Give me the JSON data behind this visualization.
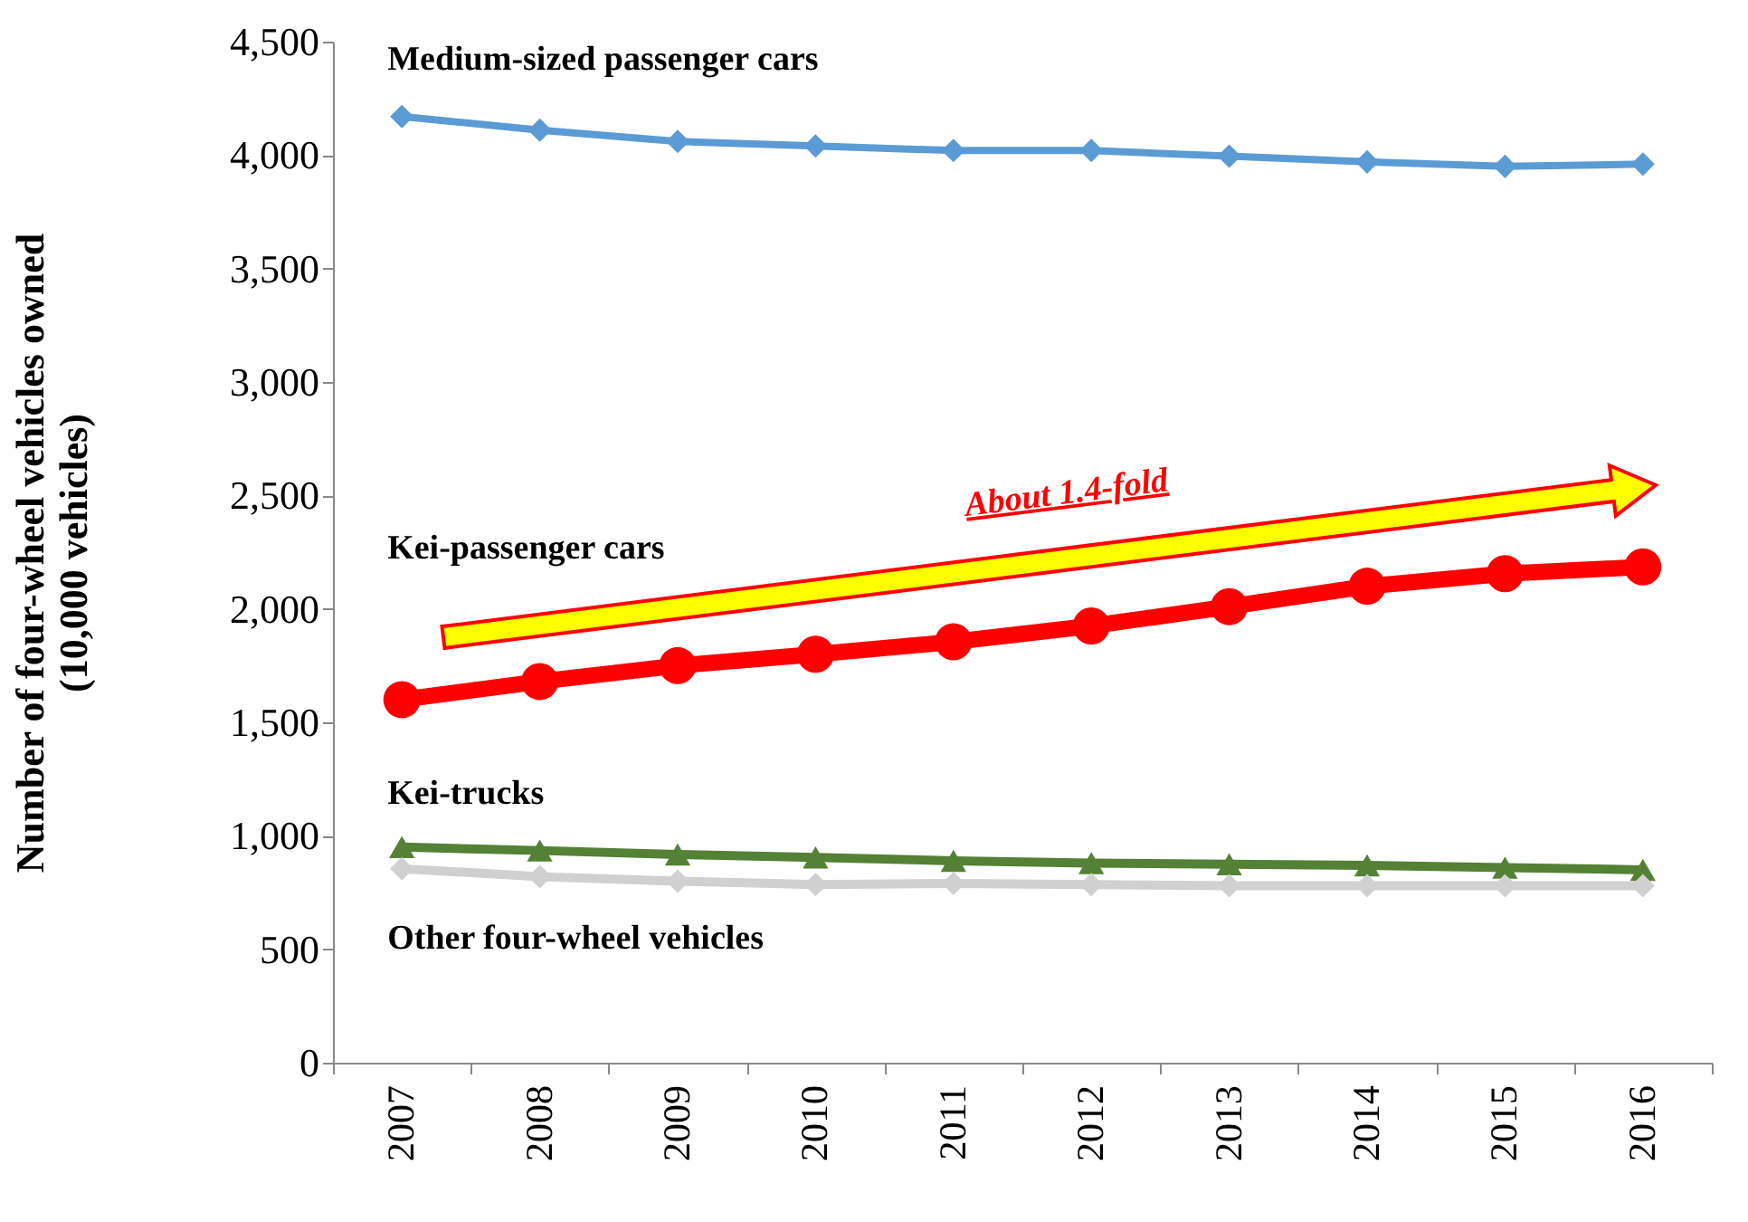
{
  "chart_data": {
    "type": "line",
    "ylabel": "Number of four-wheel vehicles owned\n(10,000 vehicles)",
    "categories": [
      "2007",
      "2008",
      "2009",
      "2010",
      "2011",
      "2012",
      "2013",
      "2014",
      "2015",
      "2016"
    ],
    "series": [
      {
        "name": "Medium-sized passenger cars",
        "color": "#5b9bd5",
        "marker": "diamond",
        "values": [
          4170,
          4110,
          4060,
          4040,
          4020,
          4020,
          3995,
          3970,
          3950,
          3960
        ]
      },
      {
        "name": "Kei-passenger cars",
        "color": "#ff0000",
        "marker": "circle",
        "values": [
          1600,
          1680,
          1750,
          1800,
          1855,
          1925,
          2010,
          2100,
          2155,
          2185
        ]
      },
      {
        "name": "Kei-trucks",
        "color": "#538135",
        "marker": "triangle",
        "values": [
          950,
          935,
          918,
          905,
          890,
          880,
          875,
          870,
          860,
          850
        ]
      },
      {
        "name": "Other four-wheel vehicles",
        "color": "#d0d0d0",
        "marker": "diamond",
        "values": [
          855,
          820,
          800,
          785,
          790,
          785,
          780,
          780,
          780,
          780
        ]
      }
    ],
    "ylim": [
      0,
      4500
    ],
    "yticks": [
      0,
      500,
      {
        "value": 1000,
        "label": "1,000"
      },
      {
        "value": 1500,
        "label": "1,500"
      },
      {
        "value": 2000,
        "label": "2,000"
      },
      {
        "value": 2500,
        "label": "2,500"
      },
      {
        "value": 3000,
        "label": "3,000"
      },
      {
        "value": 3500,
        "label": "3,500"
      },
      {
        "value": 4000,
        "label": "4,000"
      },
      {
        "value": 4500,
        "label": "4,500"
      }
    ],
    "grid": false,
    "legend": false,
    "line_style": "solid",
    "annotations": [
      "About 1.4-fold"
    ]
  }
}
